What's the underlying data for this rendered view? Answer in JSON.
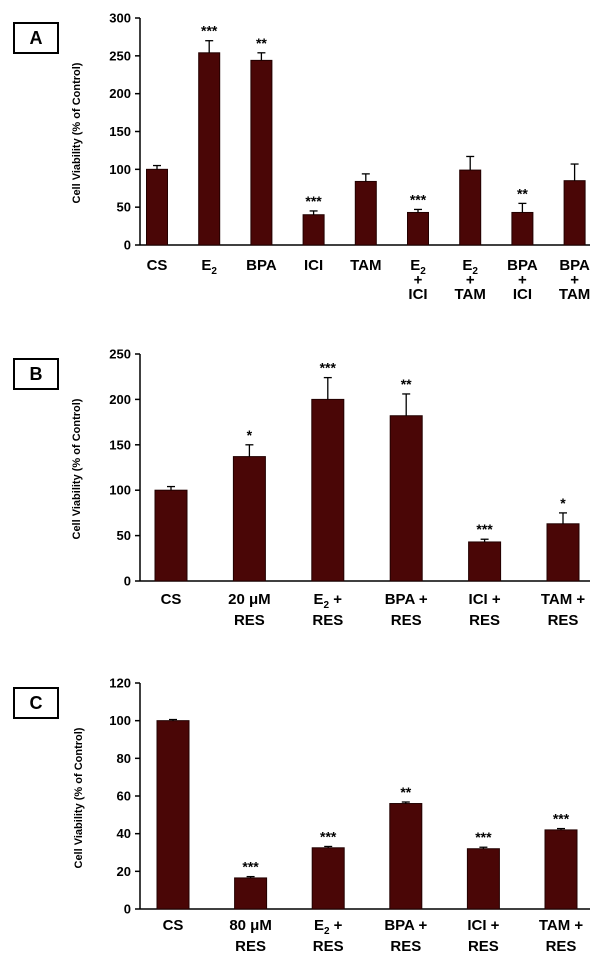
{
  "colors": {
    "bar": "#4a0606",
    "bar_stroke": "#220000",
    "axis": "#000000"
  },
  "chart_data": [
    {
      "panel": "A",
      "type": "bar",
      "ylabel": "Cell Viability (% of Control)",
      "ylim": [
        0,
        300
      ],
      "yticks": [
        0,
        50,
        100,
        150,
        200,
        250,
        300
      ],
      "categories": [
        [
          "CS"
        ],
        [
          "E2"
        ],
        [
          "BPA"
        ],
        [
          "ICI"
        ],
        [
          "TAM"
        ],
        [
          "E2",
          "+",
          "ICI"
        ],
        [
          "E2",
          "+",
          "TAM"
        ],
        [
          "BPA",
          "+",
          "ICI"
        ],
        [
          "BPA",
          "+",
          "TAM"
        ]
      ],
      "values": [
        100,
        254,
        244,
        40,
        84,
        43,
        99,
        43,
        85
      ],
      "errors": [
        5,
        16,
        10,
        5,
        10,
        4,
        18,
        12,
        22
      ],
      "significance": [
        "",
        "***",
        "**",
        "***",
        "",
        "***",
        "",
        "**",
        ""
      ]
    },
    {
      "panel": "B",
      "type": "bar",
      "ylabel": "Cell Viability (% of Control)",
      "ylim": [
        0,
        250
      ],
      "yticks": [
        0,
        50,
        100,
        150,
        200,
        250
      ],
      "categories": [
        [
          "CS"
        ],
        [
          "20 μM",
          "RES"
        ],
        [
          "E2 +",
          "RES"
        ],
        [
          "BPA +",
          "RES"
        ],
        [
          "ICI +",
          "RES"
        ],
        [
          "TAM +",
          "RES"
        ]
      ],
      "values": [
        100,
        137,
        200,
        182,
        43,
        63
      ],
      "errors": [
        4,
        13,
        24,
        24,
        3,
        12
      ],
      "significance": [
        "",
        "*",
        "***",
        "**",
        "***",
        "*"
      ]
    },
    {
      "panel": "C",
      "type": "bar",
      "ylabel": "Cell Viability (% of Control)",
      "ylim": [
        0,
        120
      ],
      "yticks": [
        0,
        20,
        40,
        60,
        80,
        100,
        120
      ],
      "categories": [
        [
          "CS"
        ],
        [
          "80 μM",
          "RES"
        ],
        [
          "E2 +",
          "RES"
        ],
        [
          "BPA +",
          "RES"
        ],
        [
          "ICI +",
          "RES"
        ],
        [
          "TAM +",
          "RES"
        ]
      ],
      "values": [
        100,
        16.5,
        32.5,
        56,
        32,
        42
      ],
      "errors": [
        0.6,
        0.7,
        0.7,
        0.8,
        0.8,
        0.7
      ],
      "significance": [
        "",
        "***",
        "***",
        "**",
        "***",
        "***"
      ]
    }
  ]
}
